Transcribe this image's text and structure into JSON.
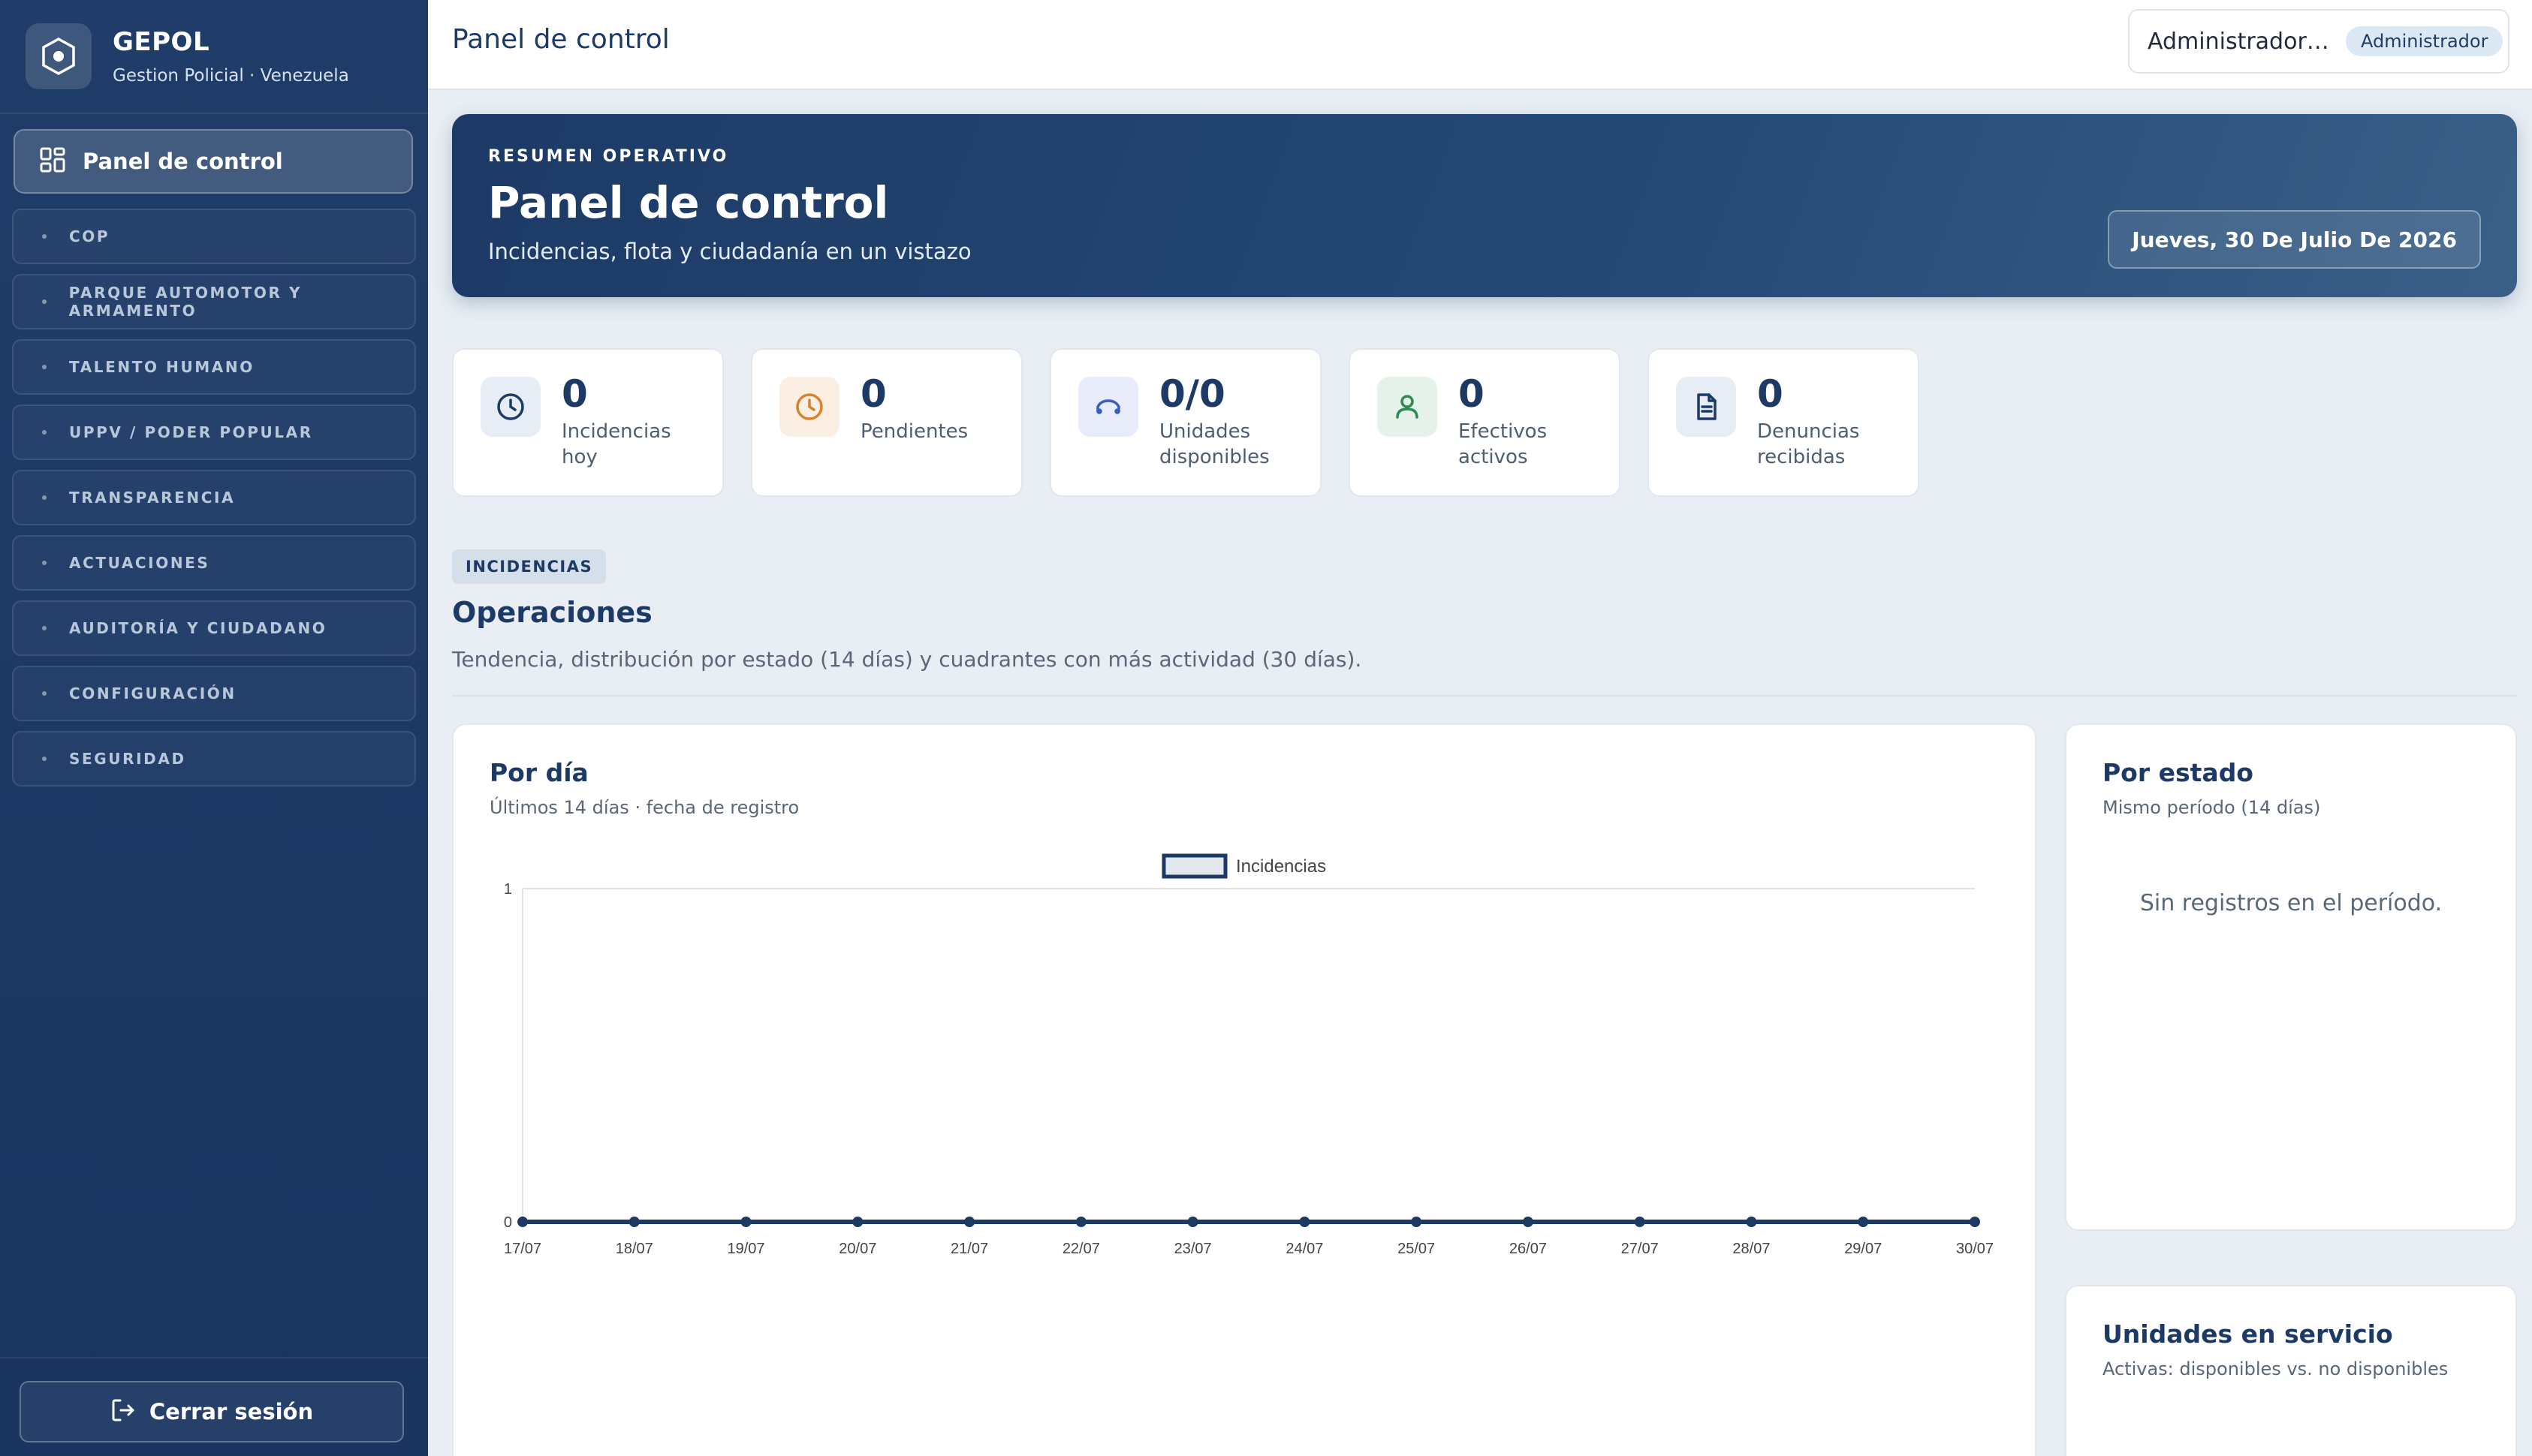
{
  "brand": {
    "name": "GEPOL",
    "subtitle": "Gestion Policial · Venezuela",
    "logo_icon": "hexagon-shield-icon"
  },
  "sidebar": {
    "active": {
      "label": "Panel de control",
      "icon": "dashboard-grid-icon"
    },
    "items": [
      {
        "label": "COP"
      },
      {
        "label": "PARQUE AUTOMOTOR Y ARMAMENTO"
      },
      {
        "label": "TALENTO HUMANO"
      },
      {
        "label": "UPPV / PODER POPULAR"
      },
      {
        "label": "TRANSPARENCIA"
      },
      {
        "label": "ACTUACIONES"
      },
      {
        "label": "AUDITORÍA Y CIUDADANO"
      },
      {
        "label": "CONFIGURACIÓN"
      },
      {
        "label": "SEGURIDAD"
      }
    ],
    "logout_label": "Cerrar sesión"
  },
  "topbar": {
    "title": "Panel de control",
    "user_name": "Administrador G...",
    "user_role": "Administrador"
  },
  "hero": {
    "eyebrow": "RESUMEN OPERATIVO",
    "title": "Panel de control",
    "subtitle": "Incidencias, flota y ciudadanía en un vistazo",
    "date": "Jueves, 30 De Julio De 2026"
  },
  "kpis": [
    {
      "value": "0",
      "label": "Incidencias hoy",
      "icon": "clock-icon",
      "color": "#1d3a66",
      "bg": "#e7edf4"
    },
    {
      "value": "0",
      "label": "Pendientes",
      "icon": "clock-icon",
      "color": "#d9822b",
      "bg": "#fbeee2"
    },
    {
      "value": "0/0",
      "label": "Unidades disponibles",
      "icon": "vehicle-icon",
      "color": "#3b5cc4",
      "bg": "#e8ecfa"
    },
    {
      "value": "0",
      "label": "Efectivos activos",
      "icon": "person-icon",
      "color": "#2f8a55",
      "bg": "#e4f2ea"
    },
    {
      "value": "0",
      "label": "Denuncias recibidas",
      "icon": "document-icon",
      "color": "#1d3a66",
      "bg": "#e7edf4"
    }
  ],
  "section": {
    "tag": "INCIDENCIAS",
    "title": "Operaciones",
    "subtitle": "Tendencia, distribución por estado (14 días) y cuadrantes con más actividad (30 días)."
  },
  "panels": {
    "por_dia": {
      "title": "Por día",
      "subtitle": "Últimos 14 días · fecha de registro"
    },
    "por_estado": {
      "title": "Por estado",
      "subtitle": "Mismo período (14 días)",
      "empty": "Sin registros en el período."
    },
    "unidades": {
      "title": "Unidades en servicio",
      "subtitle": "Activas: disponibles vs. no disponibles"
    }
  },
  "chart_data": {
    "type": "line",
    "title": "",
    "xlabel": "",
    "ylabel": "",
    "legend": "top-center",
    "series": [
      {
        "name": "Incidencias",
        "values": [
          0,
          0,
          0,
          0,
          0,
          0,
          0,
          0,
          0,
          0,
          0,
          0,
          0,
          0
        ],
        "color": "#1d3a66"
      }
    ],
    "categories": [
      "17/07",
      "18/07",
      "19/07",
      "20/07",
      "21/07",
      "22/07",
      "23/07",
      "24/07",
      "25/07",
      "26/07",
      "27/07",
      "28/07",
      "29/07",
      "30/07"
    ],
    "ylim": [
      0,
      1
    ],
    "yticks": [
      0,
      1
    ]
  }
}
